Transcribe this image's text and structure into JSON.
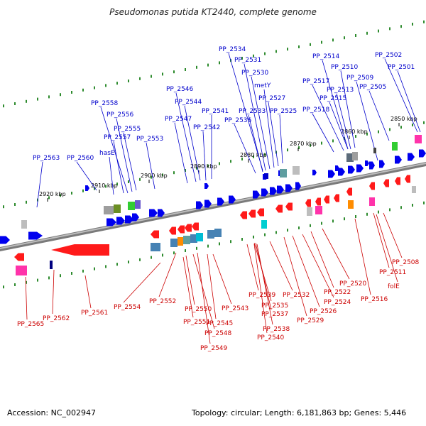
{
  "title": "Pseudomonas putida KT2440, complete genome",
  "footer": {
    "accession": "Accession: NC_002947",
    "topology": "Topology: circular; Length: 6,181,863 bp; Genes: 5,446"
  },
  "colors": {
    "top_label": "#0000cc",
    "bottom_label": "#cc0000",
    "forward_gene": "#0000ee",
    "reverse_gene": "#ff1a1a",
    "backbone": "#7a7a7a",
    "tick": "#2e8b2e"
  },
  "kbp_labels": [
    "2850 kbp",
    "2860 kbp",
    "2870 kbp",
    "2880 kbp",
    "2890 kbp",
    "2900 kbp",
    "2910 kbp",
    "2920 kbp"
  ],
  "top_labels": [
    "PP_2534",
    "PP_2531",
    "PP_2530",
    "metY",
    "PP_2527",
    "PP_2533",
    "PP_2525",
    "PP_2536",
    "PP_2514",
    "PP_2510",
    "PP_2517",
    "PP_2513",
    "PP_2515",
    "PP_2518",
    "PP_2509",
    "PP_2505",
    "PP_2502",
    "PP_2501",
    "PP_2546",
    "PP_2544",
    "PP_2547",
    "PP_2541",
    "PP_2542",
    "PP_2558",
    "PP_2556",
    "PP_2555",
    "PP_2557",
    "hasE",
    "PP_2553",
    "PP_2563",
    "PP_2560"
  ],
  "bottom_labels": [
    "PP_2565",
    "PP_2562",
    "PP_2561",
    "PP_2554",
    "PP_2552",
    "PP_2550",
    "PP_2551",
    "PP_2548",
    "PP_2549",
    "PP_2543",
    "PP_2545",
    "PP_2539",
    "PP_2535",
    "PP_2537",
    "PP_2538",
    "PP_2540",
    "PP_2532",
    "PP_2529",
    "PP_2526",
    "PP_2524",
    "PP_2522",
    "PP_2520",
    "PP_2516",
    "PP_2511",
    "PP_2508",
    "folE"
  ]
}
